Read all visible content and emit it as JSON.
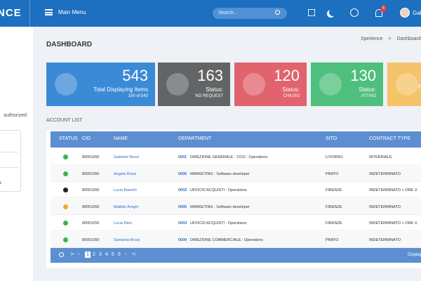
{
  "header": {
    "logo": "NCE",
    "menu": "Main Menu",
    "search_placeholder": "Search...",
    "notifications": "5",
    "user": "Gab"
  },
  "sidebar": {
    "text": "authorized",
    "box_text": "e"
  },
  "page": {
    "title": "DASHBOARD",
    "breadcrumb": [
      "Xperience",
      ">",
      "Dashboard"
    ]
  },
  "cards": [
    {
      "value": "543",
      "label": "Total Displaying Items",
      "sub": "100 of 543",
      "color": "#3b8ad6"
    },
    {
      "value": "163",
      "label": "Status:",
      "sub": "NO REQUEST",
      "color": "#626466"
    },
    {
      "value": "120",
      "label": "Status:",
      "sub": "CHIUSO",
      "color": "#e0636d"
    },
    {
      "value": "130",
      "label": "Status:",
      "sub": "ATTIVO",
      "color": "#4fbf7d"
    },
    {
      "value": "",
      "label": "",
      "sub": "P",
      "color": "#f5c36a"
    }
  ],
  "table": {
    "title": "ACCOUNT LIST",
    "columns": [
      "STATUS",
      "CID",
      "NAME",
      "DEPARTMENT",
      "SITO",
      "CONTRACT TYPE"
    ],
    "rows": [
      {
        "status_color": "#3cb34a",
        "cid": "80001050",
        "name": "Gabriele Rossi",
        "dept_code": "0001",
        "dept_name": "DIREZIONE GENERALE - COO : Operations",
        "sito": "LIVORNO",
        "contract": "INTERINALE"
      },
      {
        "status_color": "#3cb34a",
        "cid": "80001050",
        "name": "Angela Rossi",
        "dept_code": "0005",
        "dept_name": "MARKETING : Software developer",
        "sito": "PRATO",
        "contract": "INDETERMINATO"
      },
      {
        "status_color": "#222222",
        "cid": "80001050",
        "name": "Lucia Bianchi",
        "dept_code": "0002",
        "dept_name": "UFFICIO ACQUISTI : Operations",
        "sito": "FIRENZE",
        "contract": "INDETERMINATO + ORE V."
      },
      {
        "status_color": "#f5a623",
        "cid": "80001050",
        "name": "Matilde Arrighi",
        "dept_code": "0005",
        "dept_name": "MARKETING : Software developer",
        "sito": "FIRENZE",
        "contract": "INDETERMINATO"
      },
      {
        "status_color": "#3cb34a",
        "cid": "80001050",
        "name": "Lucia Nieri",
        "dept_code": "0003",
        "dept_name": "UFFICIO ACQUISTI : Operations",
        "sito": "FIRENZE",
        "contract": "INDETERMINATO + ORE V."
      },
      {
        "status_color": "#3cb34a",
        "cid": "80001050",
        "name": "Samanta Rossi",
        "dept_code": "0000",
        "dept_name": "DIREZIONE COMMERCIALE : Operations",
        "sito": "PRATO",
        "contract": "INDETERMINATO"
      }
    ],
    "pages": [
      "1",
      "2",
      "3",
      "4",
      "5",
      "6"
    ],
    "footer_text": "Displayin"
  }
}
